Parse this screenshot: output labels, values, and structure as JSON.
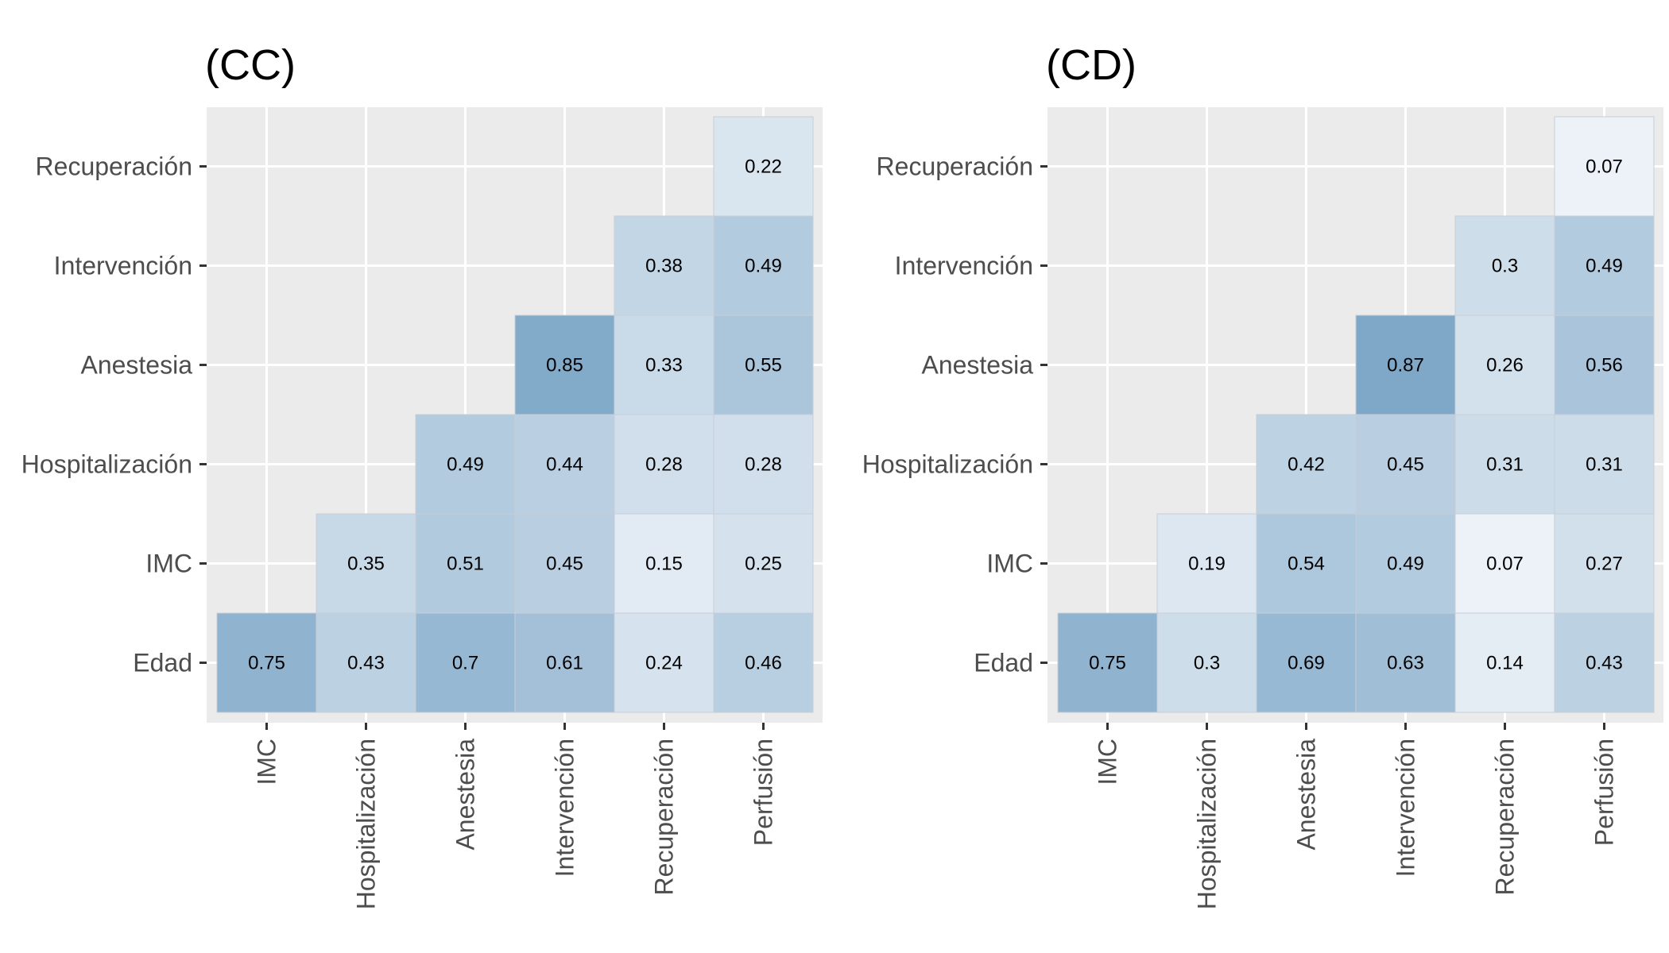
{
  "colors": {
    "panel_bg": "#ebebeb",
    "grid": "#ffffff",
    "tick": "#333333",
    "low": "#f7f9fc",
    "high": "#7fa8c8",
    "cell_border": "#c8ced6"
  },
  "chart_data": [
    {
      "type": "heatmap",
      "title": "(CC)",
      "x_categories": [
        "IMC",
        "Hospitalización",
        "Anestesia",
        "Intervención",
        "Recuperación",
        "Perfusión"
      ],
      "y_categories": [
        "Edad",
        "IMC",
        "Hospitalización",
        "Anestesia",
        "Intervención",
        "Recuperación"
      ],
      "cells": [
        {
          "x": "IMC",
          "y": "Edad",
          "value": 0.75
        },
        {
          "x": "Hospitalización",
          "y": "Edad",
          "value": 0.43
        },
        {
          "x": "Anestesia",
          "y": "Edad",
          "value": 0.7
        },
        {
          "x": "Intervención",
          "y": "Edad",
          "value": 0.61
        },
        {
          "x": "Recuperación",
          "y": "Edad",
          "value": 0.24
        },
        {
          "x": "Perfusión",
          "y": "Edad",
          "value": 0.46
        },
        {
          "x": "Hospitalización",
          "y": "IMC",
          "value": 0.35
        },
        {
          "x": "Anestesia",
          "y": "IMC",
          "value": 0.51
        },
        {
          "x": "Intervención",
          "y": "IMC",
          "value": 0.45
        },
        {
          "x": "Recuperación",
          "y": "IMC",
          "value": 0.15
        },
        {
          "x": "Perfusión",
          "y": "IMC",
          "value": 0.25
        },
        {
          "x": "Anestesia",
          "y": "Hospitalización",
          "value": 0.49
        },
        {
          "x": "Intervención",
          "y": "Hospitalización",
          "value": 0.44
        },
        {
          "x": "Recuperación",
          "y": "Hospitalización",
          "value": 0.28
        },
        {
          "x": "Perfusión",
          "y": "Hospitalización",
          "value": 0.28
        },
        {
          "x": "Intervención",
          "y": "Anestesia",
          "value": 0.85
        },
        {
          "x": "Recuperación",
          "y": "Anestesia",
          "value": 0.33
        },
        {
          "x": "Perfusión",
          "y": "Anestesia",
          "value": 0.55
        },
        {
          "x": "Recuperación",
          "y": "Intervención",
          "value": 0.38
        },
        {
          "x": "Perfusión",
          "y": "Intervención",
          "value": 0.49
        },
        {
          "x": "Perfusión",
          "y": "Recuperación",
          "value": 0.22
        }
      ]
    },
    {
      "type": "heatmap",
      "title": "(CD)",
      "x_categories": [
        "IMC",
        "Hospitalización",
        "Anestesia",
        "Intervención",
        "Recuperación",
        "Perfusión"
      ],
      "y_categories": [
        "Edad",
        "IMC",
        "Hospitalización",
        "Anestesia",
        "Intervención",
        "Recuperación"
      ],
      "cells": [
        {
          "x": "IMC",
          "y": "Edad",
          "value": 0.75
        },
        {
          "x": "Hospitalización",
          "y": "Edad",
          "value": 0.3
        },
        {
          "x": "Anestesia",
          "y": "Edad",
          "value": 0.69
        },
        {
          "x": "Intervención",
          "y": "Edad",
          "value": 0.63
        },
        {
          "x": "Recuperación",
          "y": "Edad",
          "value": 0.14
        },
        {
          "x": "Perfusión",
          "y": "Edad",
          "value": 0.43
        },
        {
          "x": "Hospitalización",
          "y": "IMC",
          "value": 0.19
        },
        {
          "x": "Anestesia",
          "y": "IMC",
          "value": 0.54
        },
        {
          "x": "Intervención",
          "y": "IMC",
          "value": 0.49
        },
        {
          "x": "Recuperación",
          "y": "IMC",
          "value": 0.07
        },
        {
          "x": "Perfusión",
          "y": "IMC",
          "value": 0.27
        },
        {
          "x": "Anestesia",
          "y": "Hospitalización",
          "value": 0.42
        },
        {
          "x": "Intervención",
          "y": "Hospitalización",
          "value": 0.45
        },
        {
          "x": "Recuperación",
          "y": "Hospitalización",
          "value": 0.31
        },
        {
          "x": "Perfusión",
          "y": "Hospitalización",
          "value": 0.31
        },
        {
          "x": "Intervención",
          "y": "Anestesia",
          "value": 0.87
        },
        {
          "x": "Recuperación",
          "y": "Anestesia",
          "value": 0.26
        },
        {
          "x": "Perfusión",
          "y": "Anestesia",
          "value": 0.56
        },
        {
          "x": "Recuperación",
          "y": "Intervención",
          "value": 0.3
        },
        {
          "x": "Perfusión",
          "y": "Intervención",
          "value": 0.49
        },
        {
          "x": "Perfusión",
          "y": "Recuperación",
          "value": 0.07
        }
      ]
    }
  ]
}
